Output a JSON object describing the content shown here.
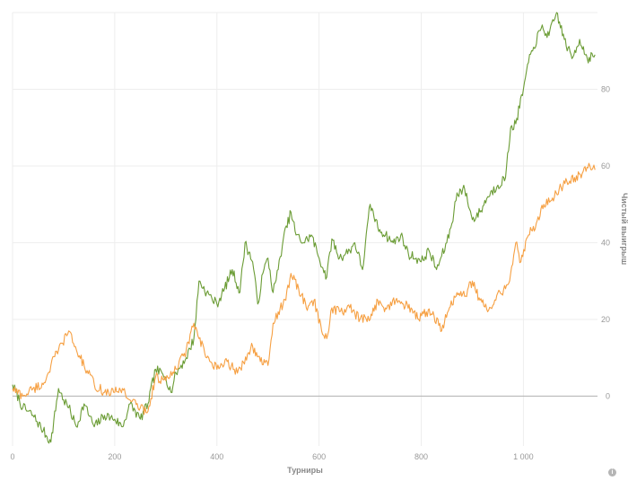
{
  "chart_data": {
    "type": "line",
    "xlabel": "Турниры",
    "ylabel": "Чистый выигрыш",
    "xlim": [
      0,
      1145
    ],
    "ylim": [
      -13,
      100
    ],
    "x_ticks": [
      0,
      200,
      400,
      600,
      800,
      1000
    ],
    "x_tick_labels": [
      "0",
      "200",
      "400",
      "600",
      "800",
      "1 000"
    ],
    "y_ticks": [
      0,
      20,
      40,
      60,
      80
    ],
    "y_tick_labels": [
      "0",
      "20",
      "40",
      "60",
      "80"
    ],
    "grid": true,
    "zero_line": true,
    "series": [
      {
        "color": "#6b9c35",
        "points": [
          [
            0,
            3
          ],
          [
            20,
            -3
          ],
          [
            40,
            -5
          ],
          [
            60,
            -9
          ],
          [
            75,
            -12
          ],
          [
            90,
            2
          ],
          [
            100,
            -1
          ],
          [
            110,
            -3
          ],
          [
            125,
            -8
          ],
          [
            140,
            -2
          ],
          [
            160,
            -8
          ],
          [
            180,
            -5
          ],
          [
            200,
            -6
          ],
          [
            215,
            -8
          ],
          [
            230,
            -2
          ],
          [
            250,
            -6
          ],
          [
            265,
            -2
          ],
          [
            280,
            7
          ],
          [
            300,
            5
          ],
          [
            310,
            1
          ],
          [
            320,
            6
          ],
          [
            340,
            10
          ],
          [
            355,
            15
          ],
          [
            365,
            30
          ],
          [
            380,
            27
          ],
          [
            400,
            24
          ],
          [
            415,
            28
          ],
          [
            430,
            33
          ],
          [
            445,
            27
          ],
          [
            455,
            40
          ],
          [
            470,
            35
          ],
          [
            480,
            24
          ],
          [
            490,
            32
          ],
          [
            500,
            36
          ],
          [
            510,
            27
          ],
          [
            520,
            33
          ],
          [
            530,
            41
          ],
          [
            545,
            48
          ],
          [
            555,
            42
          ],
          [
            570,
            40
          ],
          [
            585,
            42
          ],
          [
            600,
            36
          ],
          [
            615,
            31
          ],
          [
            625,
            41
          ],
          [
            640,
            36
          ],
          [
            660,
            38
          ],
          [
            670,
            40
          ],
          [
            685,
            33
          ],
          [
            700,
            50
          ],
          [
            715,
            44
          ],
          [
            730,
            42
          ],
          [
            745,
            40
          ],
          [
            760,
            42
          ],
          [
            775,
            37
          ],
          [
            790,
            36
          ],
          [
            800,
            35
          ],
          [
            815,
            38
          ],
          [
            830,
            33
          ],
          [
            850,
            40
          ],
          [
            860,
            45
          ],
          [
            870,
            53
          ],
          [
            885,
            54
          ],
          [
            900,
            46
          ],
          [
            915,
            48
          ],
          [
            930,
            52
          ],
          [
            950,
            55
          ],
          [
            965,
            57
          ],
          [
            975,
            70
          ],
          [
            985,
            71
          ],
          [
            1000,
            80
          ],
          [
            1010,
            87
          ],
          [
            1020,
            91
          ],
          [
            1035,
            96
          ],
          [
            1050,
            94
          ],
          [
            1065,
            100
          ],
          [
            1080,
            93
          ],
          [
            1095,
            88
          ],
          [
            1110,
            93
          ],
          [
            1125,
            88
          ],
          [
            1140,
            89
          ]
        ]
      },
      {
        "color": "#f6a043",
        "points": [
          [
            0,
            2
          ],
          [
            20,
            0
          ],
          [
            40,
            2
          ],
          [
            60,
            3
          ],
          [
            75,
            8
          ],
          [
            90,
            12
          ],
          [
            110,
            17
          ],
          [
            125,
            12
          ],
          [
            140,
            8
          ],
          [
            160,
            3
          ],
          [
            180,
            1
          ],
          [
            200,
            1
          ],
          [
            215,
            2
          ],
          [
            230,
            -1
          ],
          [
            250,
            -3
          ],
          [
            265,
            -4
          ],
          [
            280,
            5
          ],
          [
            300,
            4
          ],
          [
            320,
            7
          ],
          [
            340,
            12
          ],
          [
            355,
            19
          ],
          [
            365,
            15
          ],
          [
            380,
            10
          ],
          [
            400,
            7
          ],
          [
            420,
            9
          ],
          [
            440,
            6
          ],
          [
            460,
            11
          ],
          [
            470,
            13
          ],
          [
            485,
            9
          ],
          [
            500,
            8
          ],
          [
            510,
            19
          ],
          [
            520,
            22
          ],
          [
            535,
            25
          ],
          [
            545,
            32
          ],
          [
            560,
            28
          ],
          [
            575,
            23
          ],
          [
            590,
            25
          ],
          [
            605,
            17
          ],
          [
            615,
            15
          ],
          [
            625,
            23
          ],
          [
            640,
            22
          ],
          [
            660,
            23
          ],
          [
            680,
            20
          ],
          [
            700,
            20
          ],
          [
            715,
            25
          ],
          [
            730,
            23
          ],
          [
            750,
            25
          ],
          [
            765,
            24
          ],
          [
            780,
            23
          ],
          [
            795,
            20
          ],
          [
            810,
            22
          ],
          [
            825,
            21
          ],
          [
            840,
            17
          ],
          [
            855,
            23
          ],
          [
            870,
            27
          ],
          [
            885,
            26
          ],
          [
            900,
            30
          ],
          [
            915,
            25
          ],
          [
            930,
            22
          ],
          [
            950,
            27
          ],
          [
            965,
            28
          ],
          [
            975,
            32
          ],
          [
            985,
            40
          ],
          [
            995,
            35
          ],
          [
            1010,
            42
          ],
          [
            1025,
            45
          ],
          [
            1040,
            50
          ],
          [
            1055,
            51
          ],
          [
            1070,
            54
          ],
          [
            1085,
            56
          ],
          [
            1100,
            57
          ],
          [
            1115,
            58
          ],
          [
            1130,
            60
          ],
          [
            1140,
            59
          ]
        ]
      }
    ]
  },
  "info_icon_glyph": "i"
}
